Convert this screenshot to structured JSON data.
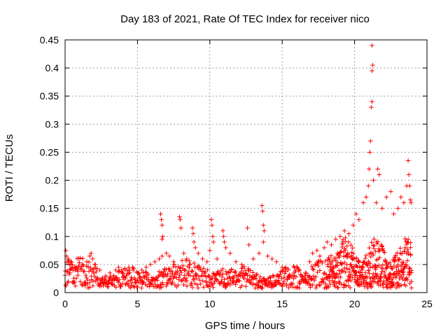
{
  "chart_data": {
    "type": "scatter",
    "title": "Day 183 of 2021, Rate Of TEC Index for receiver nico",
    "xlabel": "GPS time / hours",
    "ylabel": "ROTI / TECUs",
    "xlim": [
      0,
      25
    ],
    "ylim": [
      0,
      0.45
    ],
    "xticks": [
      "0",
      "5",
      "10",
      "15",
      "20",
      "25"
    ],
    "yticks": [
      "0",
      "0.05",
      "0.1",
      "0.15",
      "0.2",
      "0.25",
      "0.3",
      "0.35",
      "0.4",
      "0.45"
    ],
    "grid": true,
    "marker": "plus",
    "color": "#ff0000",
    "points": [
      [
        0.05,
        0.075
      ],
      [
        0.1,
        0.065
      ],
      [
        0.2,
        0.06
      ],
      [
        0.3,
        0.05
      ],
      [
        0.4,
        0.055
      ],
      [
        0.5,
        0.045
      ],
      [
        0.7,
        0.04
      ],
      [
        0.9,
        0.045
      ],
      [
        1.2,
        0.05
      ],
      [
        1.5,
        0.055
      ],
      [
        1.7,
        0.065
      ],
      [
        1.8,
        0.07
      ],
      [
        1.9,
        0.06
      ],
      [
        2.1,
        0.05
      ],
      [
        2.4,
        0.04
      ],
      [
        2.8,
        0.03
      ],
      [
        3.1,
        0.035
      ],
      [
        3.5,
        0.04
      ],
      [
        3.7,
        0.045
      ],
      [
        4.0,
        0.035
      ],
      [
        4.4,
        0.045
      ],
      [
        4.7,
        0.04
      ],
      [
        5.0,
        0.035
      ],
      [
        5.3,
        0.04
      ],
      [
        5.6,
        0.045
      ],
      [
        5.9,
        0.05
      ],
      [
        6.2,
        0.055
      ],
      [
        6.5,
        0.06
      ],
      [
        6.7,
        0.065
      ],
      [
        6.6,
        0.14
      ],
      [
        6.65,
        0.13
      ],
      [
        6.7,
        0.12
      ],
      [
        6.75,
        0.1
      ],
      [
        6.7,
        0.095
      ],
      [
        7.0,
        0.07
      ],
      [
        7.2,
        0.065
      ],
      [
        7.5,
        0.055
      ],
      [
        7.9,
        0.135
      ],
      [
        7.95,
        0.13
      ],
      [
        8.0,
        0.115
      ],
      [
        8.2,
        0.07
      ],
      [
        8.4,
        0.06
      ],
      [
        8.6,
        0.05
      ],
      [
        8.8,
        0.115
      ],
      [
        8.85,
        0.105
      ],
      [
        8.9,
        0.09
      ],
      [
        9.0,
        0.08
      ],
      [
        9.2,
        0.07
      ],
      [
        9.5,
        0.06
      ],
      [
        9.8,
        0.055
      ],
      [
        10.0,
        0.075
      ],
      [
        10.1,
        0.13
      ],
      [
        10.15,
        0.12
      ],
      [
        10.2,
        0.1
      ],
      [
        10.25,
        0.09
      ],
      [
        10.5,
        0.06
      ],
      [
        10.9,
        0.11
      ],
      [
        10.95,
        0.1
      ],
      [
        11.0,
        0.09
      ],
      [
        11.1,
        0.08
      ],
      [
        11.4,
        0.07
      ],
      [
        11.8,
        0.055
      ],
      [
        12.2,
        0.05
      ],
      [
        12.6,
        0.115
      ],
      [
        12.7,
        0.085
      ],
      [
        13.0,
        0.06
      ],
      [
        13.4,
        0.07
      ],
      [
        13.6,
        0.155
      ],
      [
        13.65,
        0.145
      ],
      [
        13.7,
        0.12
      ],
      [
        13.75,
        0.11
      ],
      [
        13.7,
        0.09
      ],
      [
        14.0,
        0.065
      ],
      [
        14.3,
        0.06
      ],
      [
        14.6,
        0.055
      ],
      [
        15.0,
        0.045
      ],
      [
        15.4,
        0.04
      ],
      [
        15.8,
        0.035
      ],
      [
        16.2,
        0.04
      ],
      [
        16.6,
        0.035
      ],
      [
        16.9,
        0.055
      ],
      [
        17.1,
        0.07
      ],
      [
        17.4,
        0.075
      ],
      [
        17.6,
        0.065
      ],
      [
        17.9,
        0.08
      ],
      [
        18.1,
        0.09
      ],
      [
        18.4,
        0.085
      ],
      [
        18.7,
        0.095
      ],
      [
        19.0,
        0.1
      ],
      [
        19.3,
        0.11
      ],
      [
        19.6,
        0.105
      ],
      [
        19.9,
        0.12
      ],
      [
        20.1,
        0.14
      ],
      [
        20.3,
        0.13
      ],
      [
        20.6,
        0.16
      ],
      [
        20.8,
        0.17
      ],
      [
        20.95,
        0.19
      ],
      [
        21.0,
        0.22
      ],
      [
        21.05,
        0.25
      ],
      [
        21.1,
        0.27
      ],
      [
        21.15,
        0.33
      ],
      [
        21.2,
        0.34
      ],
      [
        21.2,
        0.395
      ],
      [
        21.25,
        0.405
      ],
      [
        21.2,
        0.44
      ],
      [
        21.3,
        0.2
      ],
      [
        21.5,
        0.16
      ],
      [
        21.6,
        0.22
      ],
      [
        21.7,
        0.21
      ],
      [
        21.9,
        0.15
      ],
      [
        22.2,
        0.17
      ],
      [
        22.5,
        0.18
      ],
      [
        22.7,
        0.14
      ],
      [
        23.0,
        0.15
      ],
      [
        23.2,
        0.17
      ],
      [
        23.4,
        0.16
      ],
      [
        23.6,
        0.19
      ],
      [
        23.7,
        0.235
      ],
      [
        23.75,
        0.21
      ],
      [
        23.8,
        0.19
      ],
      [
        23.85,
        0.165
      ],
      [
        23.9,
        0.16
      ]
    ]
  }
}
